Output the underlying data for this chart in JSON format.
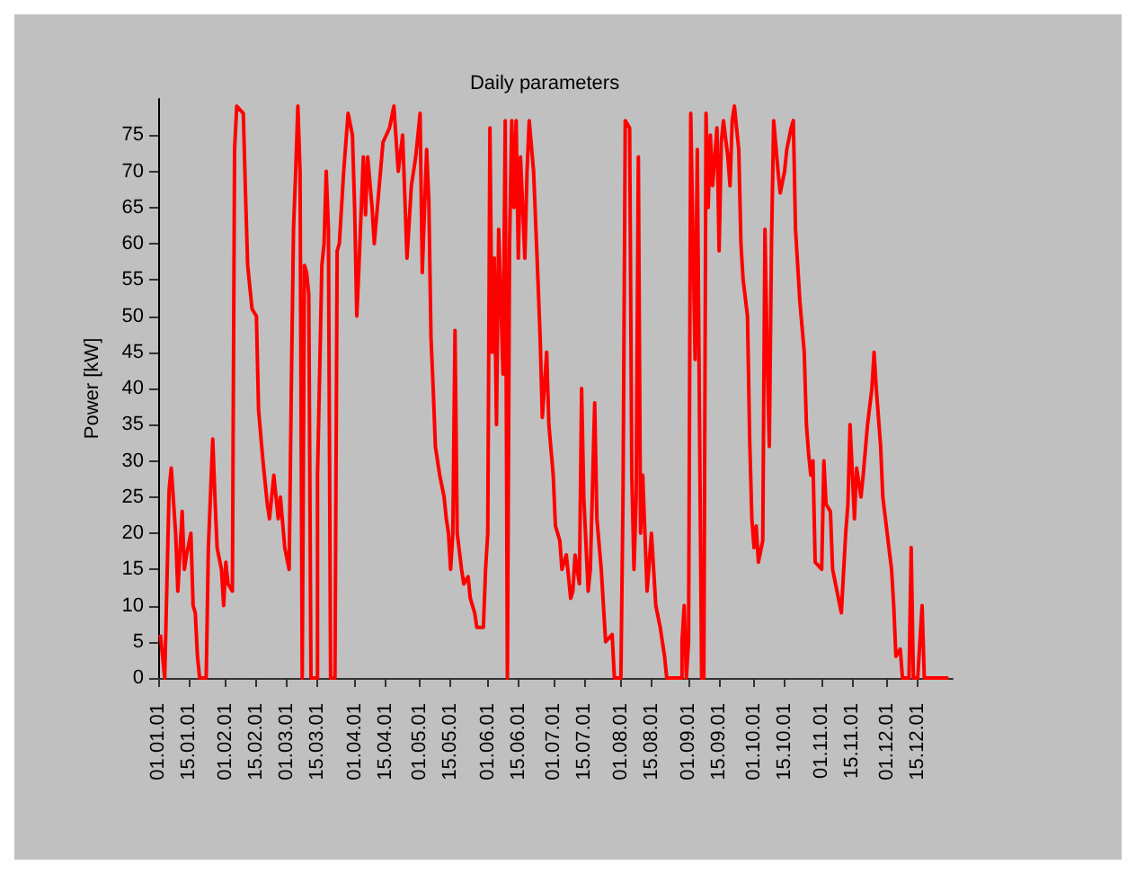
{
  "chart_data": {
    "type": "line",
    "title": "Daily parameters",
    "ylabel": "Power [kW]",
    "x": [
      "--01-02",
      "--01-04",
      "--01-06",
      "--01-07",
      "--01-09",
      "--01-10",
      "--01-12",
      "--01-13",
      "--01-14",
      "--01-16",
      "--01-17",
      "--01-18",
      "--01-19",
      "--01-20",
      "--01-23",
      "--01-24",
      "--01-26",
      "--01-27",
      "--01-28",
      "--01-30",
      "--01-31",
      "--02-01",
      "--02-02",
      "--02-04",
      "--02-05",
      "--02-06",
      "--02-09",
      "--02-10",
      "--02-11",
      "--02-13",
      "--02-15",
      "--02-16",
      "--02-18",
      "--02-20",
      "--02-21",
      "--02-23",
      "--02-25",
      "--02-26",
      "--02-28",
      "--03-02",
      "--03-03",
      "--03-04",
      "--03-05",
      "--03-06",
      "--03-07",
      "--03-08",
      "--03-09",
      "--03-10",
      "--03-11",
      "--03-12",
      "--03-15",
      "--03-15",
      "--03-17",
      "--03-18",
      "--03-19",
      "--03-20",
      "--03-21",
      "--03-23",
      "--03-24",
      "--03-25",
      "--03-27",
      "--03-29",
      "--03-31",
      "--04-01",
      "--04-02",
      "--04-03",
      "--04-05",
      "--04-06",
      "--04-07",
      "--04-09",
      "--04-10",
      "--04-12",
      "--04-14",
      "--04-17",
      "--04-19",
      "--04-21",
      "--04-23",
      "--04-25",
      "--04-27",
      "--04-29",
      "--05-01",
      "--05-02",
      "--05-04",
      "--05-05",
      "--05-06",
      "--05-07",
      "--05-08",
      "--05-10",
      "--05-12",
      "--05-13",
      "--05-14",
      "--05-15",
      "--05-16",
      "--05-17",
      "--05-18",
      "--05-20",
      "--05-21",
      "--05-23",
      "--05-24",
      "--05-26",
      "--05-27",
      "--05-30",
      "--05-31",
      "--06-01",
      "--06-02",
      "--06-03",
      "--06-04",
      "--06-05",
      "--06-06",
      "--06-08",
      "--06-09",
      "--06-10",
      "--06-11",
      "--06-12",
      "--06-13",
      "--06-14",
      "--06-15",
      "--06-16",
      "--06-18",
      "--06-19",
      "--06-20",
      "--06-22",
      "--06-24",
      "--06-25",
      "--06-26",
      "--06-28",
      "--06-29",
      "--07-01",
      "--07-02",
      "--07-04",
      "--07-05",
      "--07-07",
      "--07-09",
      "--07-10",
      "--07-11",
      "--07-13",
      "--07-14",
      "--07-15",
      "--07-17",
      "--07-18",
      "--07-20",
      "--07-21",
      "--07-23",
      "--07-24",
      "--07-25",
      "--07-28",
      "--07-29",
      "--08-01",
      "--08-02",
      "--08-03",
      "--08-05",
      "--08-06",
      "--08-07",
      "--08-08",
      "--08-09",
      "--08-10",
      "--08-11",
      "--08-13",
      "--08-15",
      "--08-17",
      "--08-19",
      "--08-21",
      "--08-22",
      "--08-29",
      "--08-29",
      "--08-30",
      "--08-31",
      "--09-01",
      "--09-02",
      "--09-04",
      "--09-05",
      "--09-06",
      "--09-07",
      "--09-08",
      "--09-09",
      "--09-10",
      "--09-11",
      "--09-12",
      "--09-14",
      "--09-15",
      "--09-16",
      "--09-17",
      "--09-19",
      "--09-20",
      "--09-21",
      "--09-22",
      "--09-24",
      "--09-25",
      "--09-26",
      "--09-28",
      "--09-29",
      "--09-30",
      "--10-01",
      "--10-02",
      "--10-03",
      "--10-05",
      "--10-06",
      "--10-07",
      "--10-08",
      "--10-09",
      "--10-10",
      "--10-12",
      "--10-13",
      "--10-15",
      "--10-16",
      "--10-18",
      "--10-19",
      "--10-20",
      "--10-22",
      "--10-24",
      "--10-25",
      "--10-26",
      "--10-27",
      "--10-28",
      "--10-29",
      "--11-01",
      "--11-02",
      "--11-03",
      "--11-05",
      "--11-06",
      "--11-08",
      "--11-10",
      "--11-12",
      "--11-13",
      "--11-14",
      "--11-16",
      "--11-17",
      "--11-19",
      "--11-20",
      "--11-22",
      "--11-24",
      "--11-25",
      "--11-26",
      "--11-28",
      "--11-29",
      "--12-01",
      "--12-03",
      "--12-04",
      "--12-05",
      "--12-07",
      "--12-08",
      "--12-11",
      "--12-12",
      "--12-13",
      "--12-15",
      "--12-17",
      "--12-18",
      "--12-29"
    ],
    "series": [
      {
        "color": "#ff0000",
        "values": [
          6,
          0,
          26,
          29,
          20,
          12,
          23,
          15,
          17,
          20,
          10,
          9,
          3,
          0,
          0,
          18,
          33,
          25,
          18,
          15,
          10,
          16,
          13,
          12,
          73,
          79,
          78,
          67,
          57,
          51,
          50,
          37,
          30,
          24,
          22,
          28,
          22,
          25,
          18,
          15,
          40,
          62,
          70,
          79,
          70,
          0,
          57,
          56,
          53,
          0,
          0,
          28,
          57,
          60,
          70,
          62,
          0,
          0,
          59,
          60,
          70,
          78,
          75,
          65,
          50,
          57,
          72,
          64,
          72,
          65,
          60,
          67,
          74,
          76,
          79,
          70,
          75,
          58,
          68,
          72,
          78,
          56,
          73,
          66,
          47,
          40,
          32,
          28,
          25,
          22,
          20,
          15,
          20,
          48,
          20,
          15,
          13,
          14,
          11,
          9,
          7,
          7,
          15,
          20,
          76,
          45,
          58,
          35,
          62,
          42,
          77,
          0,
          60,
          77,
          65,
          77,
          58,
          72,
          58,
          70,
          77,
          70,
          55,
          47,
          36,
          45,
          35,
          28,
          21,
          19,
          15,
          17,
          11,
          12,
          17,
          13,
          40,
          25,
          12,
          15,
          38,
          22,
          15,
          10,
          5,
          6,
          0,
          0,
          26,
          77,
          76,
          28,
          15,
          25,
          72,
          20,
          28,
          12,
          20,
          10,
          7,
          3,
          0,
          0,
          5,
          10,
          0,
          5,
          78,
          44,
          73,
          36,
          0,
          0,
          78,
          65,
          75,
          68,
          76,
          59,
          74,
          77,
          72,
          68,
          77,
          79,
          73,
          60,
          55,
          50,
          33,
          22,
          18,
          21,
          16,
          19,
          62,
          45,
          32,
          60,
          77,
          70,
          67,
          70,
          73,
          76,
          77,
          62,
          52,
          45,
          35,
          31,
          28,
          30,
          16,
          15,
          30,
          24,
          23,
          15,
          12,
          9,
          20,
          24,
          35,
          22,
          29,
          25,
          28,
          35,
          40,
          45,
          40,
          32,
          25,
          20,
          15,
          10,
          3,
          4,
          0,
          0,
          18,
          0,
          0,
          10,
          0,
          0
        ]
      }
    ],
    "xlim": [
      "--01-01",
      "--12-31"
    ],
    "xticks": [
      {
        "value": "--01-01",
        "label": "01.01.01"
      },
      {
        "value": "--01-15",
        "label": "15.01.01"
      },
      {
        "value": "--02-01",
        "label": "01.02.01"
      },
      {
        "value": "--02-15",
        "label": "15.02.01"
      },
      {
        "value": "--03-01",
        "label": "01.03.01"
      },
      {
        "value": "--03-15",
        "label": "15.03.01"
      },
      {
        "value": "--04-01",
        "label": "01.04.01"
      },
      {
        "value": "--04-15",
        "label": "15.04.01"
      },
      {
        "value": "--05-01",
        "label": "01.05.01"
      },
      {
        "value": "--05-15",
        "label": "15.05.01"
      },
      {
        "value": "--06-01",
        "label": "01.06.01"
      },
      {
        "value": "--06-15",
        "label": "15.06.01"
      },
      {
        "value": "--07-01",
        "label": "01.07.01"
      },
      {
        "value": "--07-15",
        "label": "15.07.01"
      },
      {
        "value": "--08-01",
        "label": "01.08.01"
      },
      {
        "value": "--08-15",
        "label": "15.08.01"
      },
      {
        "value": "--09-01",
        "label": "01.09.01"
      },
      {
        "value": "--09-15",
        "label": "15.09.01"
      },
      {
        "value": "--10-01",
        "label": "01.10.01"
      },
      {
        "value": "--10-15",
        "label": "15.10.01"
      },
      {
        "value": "--11-01",
        "label": "01.11.01"
      },
      {
        "value": "--11-15",
        "label": "15.11.01"
      },
      {
        "value": "--12-01",
        "label": "01.12.01"
      },
      {
        "value": "--12-15",
        "label": "15.12.01"
      }
    ],
    "ylim": [
      0,
      80
    ],
    "yticks": [
      0,
      5,
      10,
      15,
      20,
      25,
      30,
      35,
      40,
      45,
      50,
      55,
      60,
      65,
      70,
      75
    ],
    "grid": false,
    "marker": "none",
    "line_style": "solid"
  }
}
